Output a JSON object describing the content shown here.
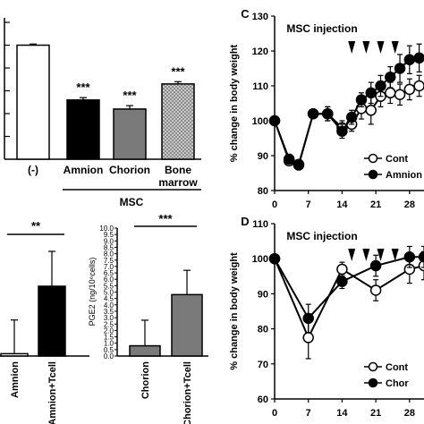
{
  "colors": {
    "white": "#ffffff",
    "black": "#000000",
    "gray": "#7a7a7a",
    "bone": "#c8c8c8"
  },
  "chart_data": [
    {
      "id": "A",
      "type": "bar",
      "panel_label": "",
      "categories": [
        "(-)",
        "Amnion",
        "Chorion",
        "Bone marrow"
      ],
      "category_labels": [
        [
          "(-)"
        ],
        [
          "Amnion"
        ],
        [
          "Chorion"
        ],
        [
          "Bone",
          "marrow"
        ]
      ],
      "values": [
        100,
        52,
        44,
        66
      ],
      "errors": [
        1,
        2,
        3,
        2
      ],
      "significance": [
        "",
        "***",
        "***",
        "***"
      ],
      "fills": [
        "white",
        "black",
        "gray",
        "bone"
      ],
      "group_label": "MSC",
      "ylim": [
        0,
        120
      ],
      "ylabel": "",
      "xlabel": "",
      "title": ""
    },
    {
      "id": "B1",
      "type": "bar",
      "categories": [
        "Amnion",
        "Amnion+Tcell"
      ],
      "values": [
        0.2,
        6.0
      ],
      "errors": [
        2.9,
        3.0
      ],
      "fills": [
        "white",
        "black"
      ],
      "significance": "**",
      "ylim": [
        0,
        10
      ],
      "ylabel": "",
      "title": ""
    },
    {
      "id": "B2",
      "type": "bar",
      "categories": [
        "Chorion",
        "Chorion+Tcell"
      ],
      "values": [
        0.8,
        4.8
      ],
      "errors": [
        2.0,
        1.9
      ],
      "fills": [
        "gray",
        "gray"
      ],
      "significance": "***",
      "ylim": [
        0,
        10
      ],
      "yticks": [
        "0.0",
        "0.5",
        "1.0",
        "1.5",
        "2.0",
        "2.5",
        "3.0",
        "3.5",
        "4.0",
        "4.5",
        "5.0",
        "5.5",
        "6.0",
        "6.5",
        "7.0",
        "7.5",
        "8.0",
        "8.5",
        "9.0",
        "9.5",
        "10.0"
      ],
      "ylabel": "PGE2 (ng/10⁶cells)",
      "title": ""
    },
    {
      "id": "C",
      "type": "line",
      "panel_label": "C",
      "annotation": "MSC injection",
      "arrow_days": [
        16,
        19,
        22,
        25
      ],
      "ylabel": "% change in body weight",
      "ylim": [
        80,
        130
      ],
      "yticks": [
        "80",
        "90",
        "100",
        "110",
        "120",
        "130"
      ],
      "xlim": [
        0,
        31
      ],
      "xticks": [
        "0",
        "7",
        "14",
        "21",
        "28"
      ],
      "series": [
        {
          "name": "Cont",
          "marker": "open",
          "x": [
            0,
            3,
            5,
            8,
            11,
            14,
            16,
            18,
            20,
            22,
            24,
            26,
            28,
            30
          ],
          "y": [
            100,
            88.5,
            87.3,
            102,
            102,
            98,
            99,
            103.5,
            103,
            107,
            108,
            107.5,
            109,
            110
          ],
          "err": [
            0,
            1,
            1,
            1,
            2,
            2,
            2,
            3,
            4,
            3,
            3,
            3,
            3,
            3
          ]
        },
        {
          "name": "Amnion",
          "marker": "filled",
          "x": [
            0,
            3,
            5,
            8,
            11,
            14,
            16,
            18,
            20,
            22,
            24,
            26,
            28,
            30
          ],
          "y": [
            100,
            89,
            87.5,
            102,
            102,
            97,
            101,
            106,
            108,
            110,
            112.5,
            115,
            117.5,
            118
          ],
          "err": [
            0,
            1,
            1,
            1,
            2,
            2,
            2,
            2,
            3,
            3,
            3,
            4,
            4,
            4
          ]
        }
      ]
    },
    {
      "id": "D",
      "type": "line",
      "panel_label": "D",
      "annotation": "MSC injection",
      "arrow_days": [
        16,
        19,
        22,
        25
      ],
      "ylabel": "% change in body weight",
      "ylim": [
        60,
        110
      ],
      "yticks": [
        "60",
        "70",
        "80",
        "90",
        "100",
        "110"
      ],
      "xlim": [
        0,
        31
      ],
      "xticks": [
        "0",
        "7",
        "14",
        "21",
        "28"
      ],
      "series": [
        {
          "name": "Cont",
          "marker": "open",
          "x": [
            0,
            7,
            14,
            21,
            28,
            31
          ],
          "y": [
            100,
            77.5,
            97,
            91,
            97,
            98
          ],
          "err": [
            0,
            6,
            2,
            3,
            4,
            4
          ]
        },
        {
          "name": "Chor",
          "marker": "filled",
          "x": [
            0,
            7,
            14,
            21,
            28,
            31
          ],
          "y": [
            100,
            83,
            93.5,
            98,
            100.5,
            100.5
          ],
          "err": [
            0,
            4,
            2,
            3,
            3,
            3
          ]
        }
      ]
    }
  ]
}
